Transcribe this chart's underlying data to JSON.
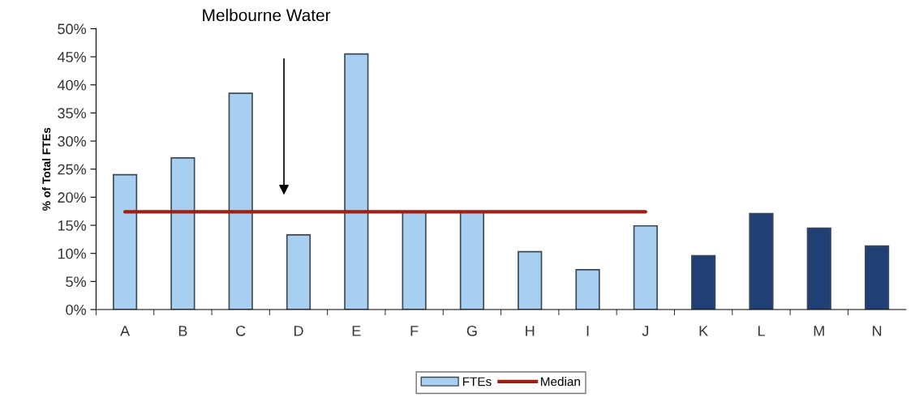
{
  "chart_data": {
    "type": "bar",
    "ylabel": "% of Total FTEs",
    "categories": [
      "A",
      "B",
      "C",
      "D",
      "E",
      "F",
      "G",
      "H",
      "I",
      "J",
      "K",
      "L",
      "M",
      "N"
    ],
    "series": [
      {
        "name": "FTEs",
        "values": [
          24.0,
          27.0,
          38.5,
          13.3,
          45.5,
          17.4,
          17.4,
          10.3,
          7.1,
          14.9,
          9.6,
          17.1,
          14.5,
          11.3
        ],
        "colors": [
          "#a9cff0",
          "#a9cff0",
          "#a9cff0",
          "#a9cff0",
          "#a9cff0",
          "#a9cff0",
          "#a9cff0",
          "#a9cff0",
          "#a9cff0",
          "#a9cff0",
          "#203f74",
          "#203f74",
          "#203f74",
          "#203f74"
        ],
        "color": "#a9cff0"
      },
      {
        "name": "Median",
        "type": "line",
        "color": "#a01e14",
        "values": [
          17.4,
          17.4,
          17.4,
          17.4,
          17.4,
          17.4,
          17.4,
          17.4,
          17.4,
          17.4,
          null,
          null,
          null,
          null
        ]
      }
    ],
    "ylim": [
      0,
      50
    ],
    "yticks": [
      {
        "value": 0,
        "label": "0%"
      },
      {
        "value": 5,
        "label": "5%"
      },
      {
        "value": 10,
        "label": "10%"
      },
      {
        "value": 15,
        "label": "15%"
      },
      {
        "value": 20,
        "label": "20%"
      },
      {
        "value": 25,
        "label": "25%"
      },
      {
        "value": 30,
        "label": "30%"
      },
      {
        "value": 35,
        "label": "35%"
      },
      {
        "value": 40,
        "label": "40%"
      },
      {
        "value": 45,
        "label": "45%"
      },
      {
        "value": 50,
        "label": "50%"
      }
    ],
    "annotations": [
      "Melbourne Water"
    ],
    "grid": false,
    "legend": "bottom"
  }
}
